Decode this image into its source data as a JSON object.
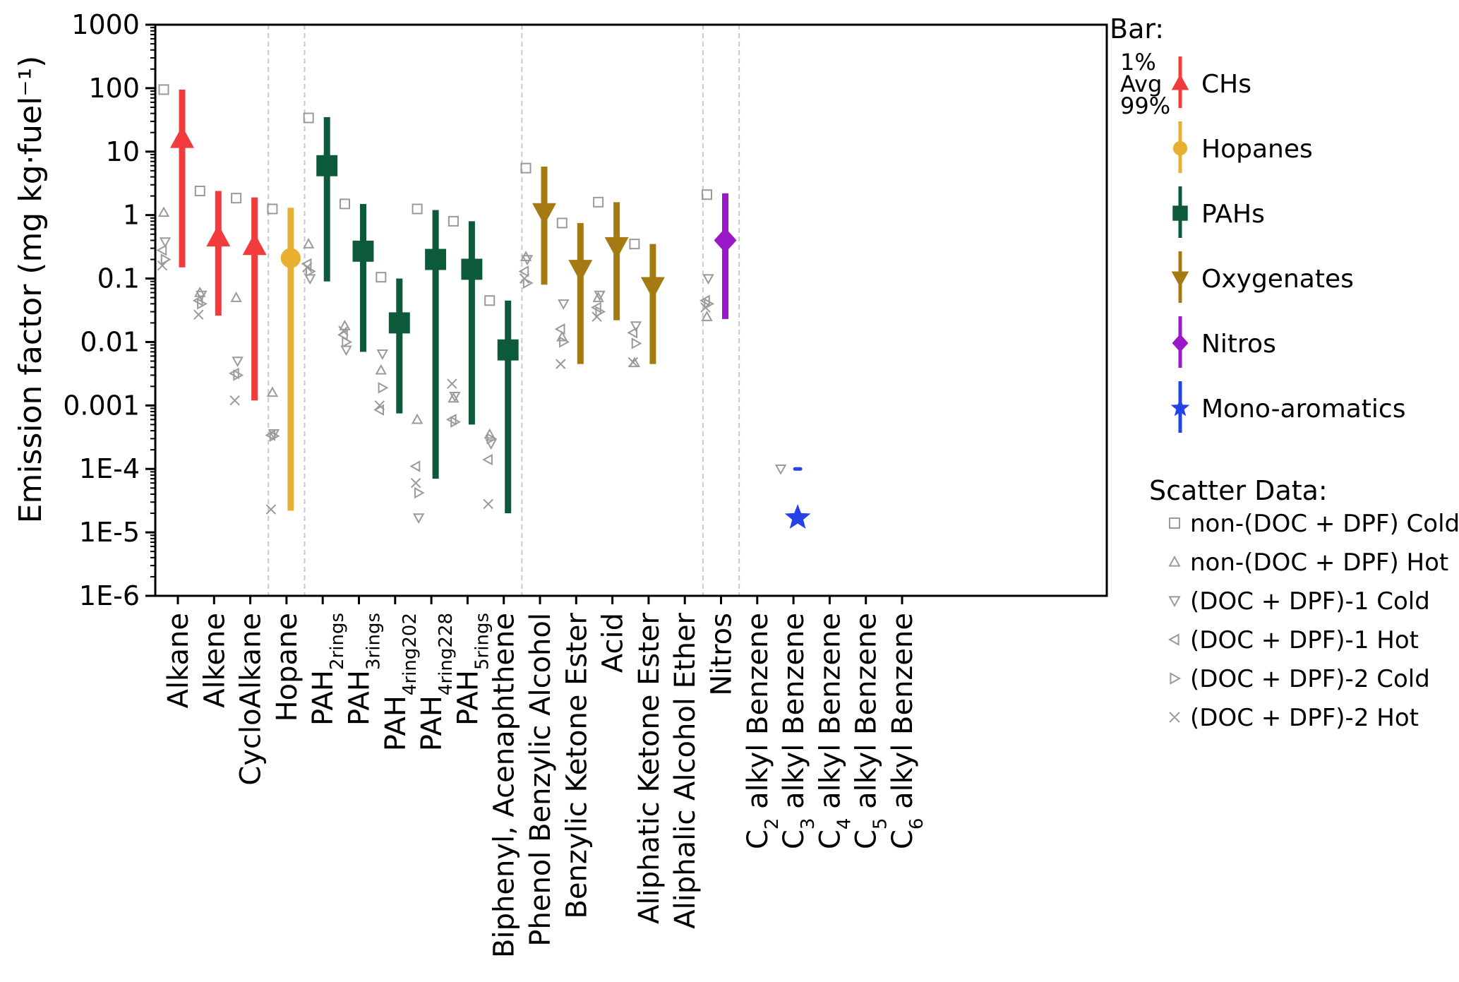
{
  "chart_data": {
    "type": "scatter",
    "ylabel": "Emission factor (mg kg·fuel⁻¹)",
    "yscale": "log",
    "ylim": [
      1e-06,
      1000
    ],
    "yticks": [
      {
        "v": 1000,
        "label": "1000"
      },
      {
        "v": 100,
        "label": "100"
      },
      {
        "v": 10,
        "label": "10"
      },
      {
        "v": 1,
        "label": "1"
      },
      {
        "v": 0.1,
        "label": "0.1"
      },
      {
        "v": 0.01,
        "label": "0.01"
      },
      {
        "v": 0.001,
        "label": "0.001"
      },
      {
        "v": 0.0001,
        "label": "1E-4"
      },
      {
        "v": 1e-05,
        "label": "1E-5"
      },
      {
        "v": 1e-06,
        "label": "1E-6"
      }
    ],
    "group_separators_after": [
      3,
      4,
      10,
      15,
      16
    ],
    "categories": [
      {
        "label": "Alkane",
        "group": "CHs"
      },
      {
        "label": "Alkene",
        "group": "CHs"
      },
      {
        "label": "CycloAlkane",
        "group": "CHs"
      },
      {
        "label": "Hopane",
        "group": "Hopanes"
      },
      {
        "label": "PAH",
        "sub": "2rings",
        "group": "PAHs"
      },
      {
        "label": "PAH",
        "sub": "3rings",
        "group": "PAHs"
      },
      {
        "label": "PAH",
        "sub": "4ring202",
        "group": "PAHs"
      },
      {
        "label": "PAH",
        "sub": "4ring228",
        "group": "PAHs"
      },
      {
        "label": "PAH",
        "sub": "5rings",
        "group": "PAHs"
      },
      {
        "label": "Biphenyl, Acenaphthene",
        "group": "PAHs"
      },
      {
        "label": "Phenol Benzylic Alcohol",
        "group": "Oxygenates"
      },
      {
        "label": "Benzylic Ketone Ester",
        "group": "Oxygenates"
      },
      {
        "label": "Acid",
        "group": "Oxygenates"
      },
      {
        "label": "Aliphatic Ketone Ester",
        "group": "Oxygenates"
      },
      {
        "label": "Aliphalic Alcohol Ether",
        "group": "Oxygenates"
      },
      {
        "label": "Nitros",
        "group": "Nitros"
      },
      {
        "label": "C",
        "sub": "2",
        "rest": " alkyl Benzene",
        "group": "Mono-aromatics"
      },
      {
        "label": "C",
        "sub": "3",
        "rest": " alkyl Benzene",
        "group": "Mono-aromatics"
      },
      {
        "label": "C",
        "sub": "4",
        "rest": " alkyl Benzene",
        "group": "Mono-aromatics"
      },
      {
        "label": "C",
        "sub": "5",
        "rest": " alkyl Benzene",
        "group": "Mono-aromatics"
      },
      {
        "label": "C",
        "sub": "6",
        "rest": " alkyl Benzene",
        "group": "Mono-aromatics"
      }
    ],
    "bars": [
      {
        "cat": 0,
        "low": 0.15,
        "avg": 16,
        "high": 95
      },
      {
        "cat": 1,
        "low": 0.026,
        "avg": 0.45,
        "high": 2.4
      },
      {
        "cat": 2,
        "low": 0.0012,
        "avg": 0.33,
        "high": 1.9
      },
      {
        "cat": 3,
        "low": 2.2e-05,
        "avg": 0.21,
        "high": 1.3
      },
      {
        "cat": 4,
        "low": 0.09,
        "avg": 6,
        "high": 35
      },
      {
        "cat": 5,
        "low": 0.007,
        "avg": 0.27,
        "high": 1.5
      },
      {
        "cat": 6,
        "low": 0.00075,
        "avg": 0.02,
        "high": 0.1
      },
      {
        "cat": 7,
        "low": 7e-05,
        "avg": 0.2,
        "high": 1.2
      },
      {
        "cat": 8,
        "low": 0.0005,
        "avg": 0.14,
        "high": 0.8
      },
      {
        "cat": 9,
        "low": 2e-05,
        "avg": 0.0075,
        "high": 0.045
      },
      {
        "cat": 10,
        "low": 0.08,
        "avg": 1.1,
        "high": 5.8
      },
      {
        "cat": 11,
        "low": 0.0045,
        "avg": 0.14,
        "high": 0.75
      },
      {
        "cat": 12,
        "low": 0.022,
        "avg": 0.32,
        "high": 1.6
      },
      {
        "cat": 13,
        "low": 0.0045,
        "avg": 0.075,
        "high": 0.35
      },
      {
        "cat": 15,
        "low": 0.023,
        "avg": 0.4,
        "high": 2.2
      },
      {
        "cat": 17,
        "low": 0.0001,
        "avg": 1.7e-05,
        "high": 0.0001
      }
    ],
    "scatter": [
      {
        "cat": 0,
        "m": "square",
        "v": 95
      },
      {
        "cat": 0,
        "m": "up",
        "v": 1.1
      },
      {
        "cat": 0,
        "m": "down",
        "v": 0.38
      },
      {
        "cat": 0,
        "m": "left",
        "v": 0.28
      },
      {
        "cat": 0,
        "m": "right",
        "v": 0.2
      },
      {
        "cat": 0,
        "m": "x",
        "v": 0.16
      },
      {
        "cat": 1,
        "m": "square",
        "v": 2.4
      },
      {
        "cat": 1,
        "m": "up",
        "v": 0.06
      },
      {
        "cat": 1,
        "m": "down",
        "v": 0.055
      },
      {
        "cat": 1,
        "m": "left",
        "v": 0.045
      },
      {
        "cat": 1,
        "m": "right",
        "v": 0.04
      },
      {
        "cat": 1,
        "m": "x",
        "v": 0.027
      },
      {
        "cat": 2,
        "m": "square",
        "v": 1.85
      },
      {
        "cat": 2,
        "m": "up",
        "v": 0.05
      },
      {
        "cat": 2,
        "m": "down",
        "v": 0.005
      },
      {
        "cat": 2,
        "m": "left",
        "v": 0.0032
      },
      {
        "cat": 2,
        "m": "right",
        "v": 0.003
      },
      {
        "cat": 2,
        "m": "x",
        "v": 0.0012
      },
      {
        "cat": 3,
        "m": "square",
        "v": 1.25
      },
      {
        "cat": 3,
        "m": "up",
        "v": 0.0016
      },
      {
        "cat": 3,
        "m": "down",
        "v": 0.00036
      },
      {
        "cat": 3,
        "m": "left",
        "v": 0.00034
      },
      {
        "cat": 3,
        "m": "right",
        "v": 0.00033
      },
      {
        "cat": 3,
        "m": "x",
        "v": 2.3e-05
      },
      {
        "cat": 4,
        "m": "square",
        "v": 34
      },
      {
        "cat": 4,
        "m": "up",
        "v": 0.35
      },
      {
        "cat": 4,
        "m": "down",
        "v": 0.1
      },
      {
        "cat": 4,
        "m": "left",
        "v": 0.17
      },
      {
        "cat": 4,
        "m": "right",
        "v": 0.13
      },
      {
        "cat": 4,
        "m": "x",
        "v": 0.15
      },
      {
        "cat": 5,
        "m": "square",
        "v": 1.5
      },
      {
        "cat": 5,
        "m": "up",
        "v": 0.018
      },
      {
        "cat": 5,
        "m": "down",
        "v": 0.0075
      },
      {
        "cat": 5,
        "m": "left",
        "v": 0.013
      },
      {
        "cat": 5,
        "m": "right",
        "v": 0.01
      },
      {
        "cat": 5,
        "m": "x",
        "v": 0.015
      },
      {
        "cat": 6,
        "m": "square",
        "v": 0.105
      },
      {
        "cat": 6,
        "m": "up",
        "v": 0.0036
      },
      {
        "cat": 6,
        "m": "down",
        "v": 0.0065
      },
      {
        "cat": 6,
        "m": "left",
        "v": 0.00085
      },
      {
        "cat": 6,
        "m": "right",
        "v": 0.0019
      },
      {
        "cat": 6,
        "m": "x",
        "v": 0.001
      },
      {
        "cat": 7,
        "m": "square",
        "v": 1.25
      },
      {
        "cat": 7,
        "m": "up",
        "v": 0.0006
      },
      {
        "cat": 7,
        "m": "down",
        "v": 1.7e-05
      },
      {
        "cat": 7,
        "m": "left",
        "v": 0.00011
      },
      {
        "cat": 7,
        "m": "right",
        "v": 4.2e-05
      },
      {
        "cat": 7,
        "m": "x",
        "v": 6e-05
      },
      {
        "cat": 8,
        "m": "square",
        "v": 0.8
      },
      {
        "cat": 8,
        "m": "up",
        "v": 0.0013
      },
      {
        "cat": 8,
        "m": "down",
        "v": 0.0014
      },
      {
        "cat": 8,
        "m": "left",
        "v": 0.0006
      },
      {
        "cat": 8,
        "m": "right",
        "v": 0.00055
      },
      {
        "cat": 8,
        "m": "x",
        "v": 0.0022
      },
      {
        "cat": 9,
        "m": "square",
        "v": 0.045
      },
      {
        "cat": 9,
        "m": "up",
        "v": 0.00035
      },
      {
        "cat": 9,
        "m": "down",
        "v": 0.00025
      },
      {
        "cat": 9,
        "m": "left",
        "v": 0.00014
      },
      {
        "cat": 9,
        "m": "right",
        "v": 0.0003
      },
      {
        "cat": 9,
        "m": "x",
        "v": 2.8e-05
      },
      {
        "cat": 10,
        "m": "square",
        "v": 5.5
      },
      {
        "cat": 10,
        "m": "up",
        "v": 0.22
      },
      {
        "cat": 10,
        "m": "down",
        "v": 0.2
      },
      {
        "cat": 10,
        "m": "left",
        "v": 0.13
      },
      {
        "cat": 10,
        "m": "right",
        "v": 0.085
      },
      {
        "cat": 10,
        "m": "x",
        "v": 0.1
      },
      {
        "cat": 11,
        "m": "square",
        "v": 0.75
      },
      {
        "cat": 11,
        "m": "up",
        "v": 0.012
      },
      {
        "cat": 11,
        "m": "down",
        "v": 0.04
      },
      {
        "cat": 11,
        "m": "left",
        "v": 0.016
      },
      {
        "cat": 11,
        "m": "right",
        "v": 0.01
      },
      {
        "cat": 11,
        "m": "x",
        "v": 0.0045
      },
      {
        "cat": 12,
        "m": "square",
        "v": 1.6
      },
      {
        "cat": 12,
        "m": "up",
        "v": 0.05
      },
      {
        "cat": 12,
        "m": "down",
        "v": 0.055
      },
      {
        "cat": 12,
        "m": "left",
        "v": 0.035
      },
      {
        "cat": 12,
        "m": "right",
        "v": 0.03
      },
      {
        "cat": 12,
        "m": "x",
        "v": 0.025
      },
      {
        "cat": 13,
        "m": "square",
        "v": 0.35
      },
      {
        "cat": 13,
        "m": "up",
        "v": 0.0047
      },
      {
        "cat": 13,
        "m": "down",
        "v": 0.018
      },
      {
        "cat": 13,
        "m": "left",
        "v": 0.014
      },
      {
        "cat": 13,
        "m": "right",
        "v": 0.0095
      },
      {
        "cat": 13,
        "m": "x",
        "v": 0.0048
      },
      {
        "cat": 15,
        "m": "square",
        "v": 2.1
      },
      {
        "cat": 15,
        "m": "up",
        "v": 0.025
      },
      {
        "cat": 15,
        "m": "down",
        "v": 0.1
      },
      {
        "cat": 15,
        "m": "left",
        "v": 0.045
      },
      {
        "cat": 15,
        "m": "right",
        "v": 0.04
      },
      {
        "cat": 15,
        "m": "x",
        "v": 0.035
      },
      {
        "cat": 17,
        "m": "down",
        "v": 0.0001
      }
    ],
    "groups": [
      {
        "name": "CHs",
        "label": "CHs",
        "color": "#f23c3c",
        "marker": "triangle-up"
      },
      {
        "name": "Hopanes",
        "label": "Hopanes",
        "color": "#e8b030",
        "marker": "circle"
      },
      {
        "name": "PAHs",
        "label": "PAHs",
        "color": "#0c5a3a",
        "marker": "square"
      },
      {
        "name": "Oxygenates",
        "label": "Oxygenates",
        "color": "#a57a12",
        "marker": "triangle-down"
      },
      {
        "name": "Nitros",
        "label": "Nitros",
        "color": "#9a18c8",
        "marker": "diamond"
      },
      {
        "name": "Mono-aromatics",
        "label": "Mono-aromatics",
        "color": "#2442e6",
        "marker": "star"
      }
    ],
    "legend": {
      "bar_title": "Bar:",
      "bar_key": [
        "1%",
        "Avg",
        "99%"
      ],
      "scatter_title": "Scatter Data:",
      "scatter_entries": [
        {
          "marker": "square",
          "label": "non-(DOC + DPF) Cold"
        },
        {
          "marker": "up",
          "label": "non-(DOC + DPF) Hot"
        },
        {
          "marker": "down",
          "label": "(DOC + DPF)-1 Cold"
        },
        {
          "marker": "left",
          "label": "(DOC + DPF)-1 Hot"
        },
        {
          "marker": "right",
          "label": "(DOC + DPF)-2 Cold"
        },
        {
          "marker": "x",
          "label": "(DOC + DPF)-2 Hot"
        }
      ],
      "position": "right"
    }
  }
}
